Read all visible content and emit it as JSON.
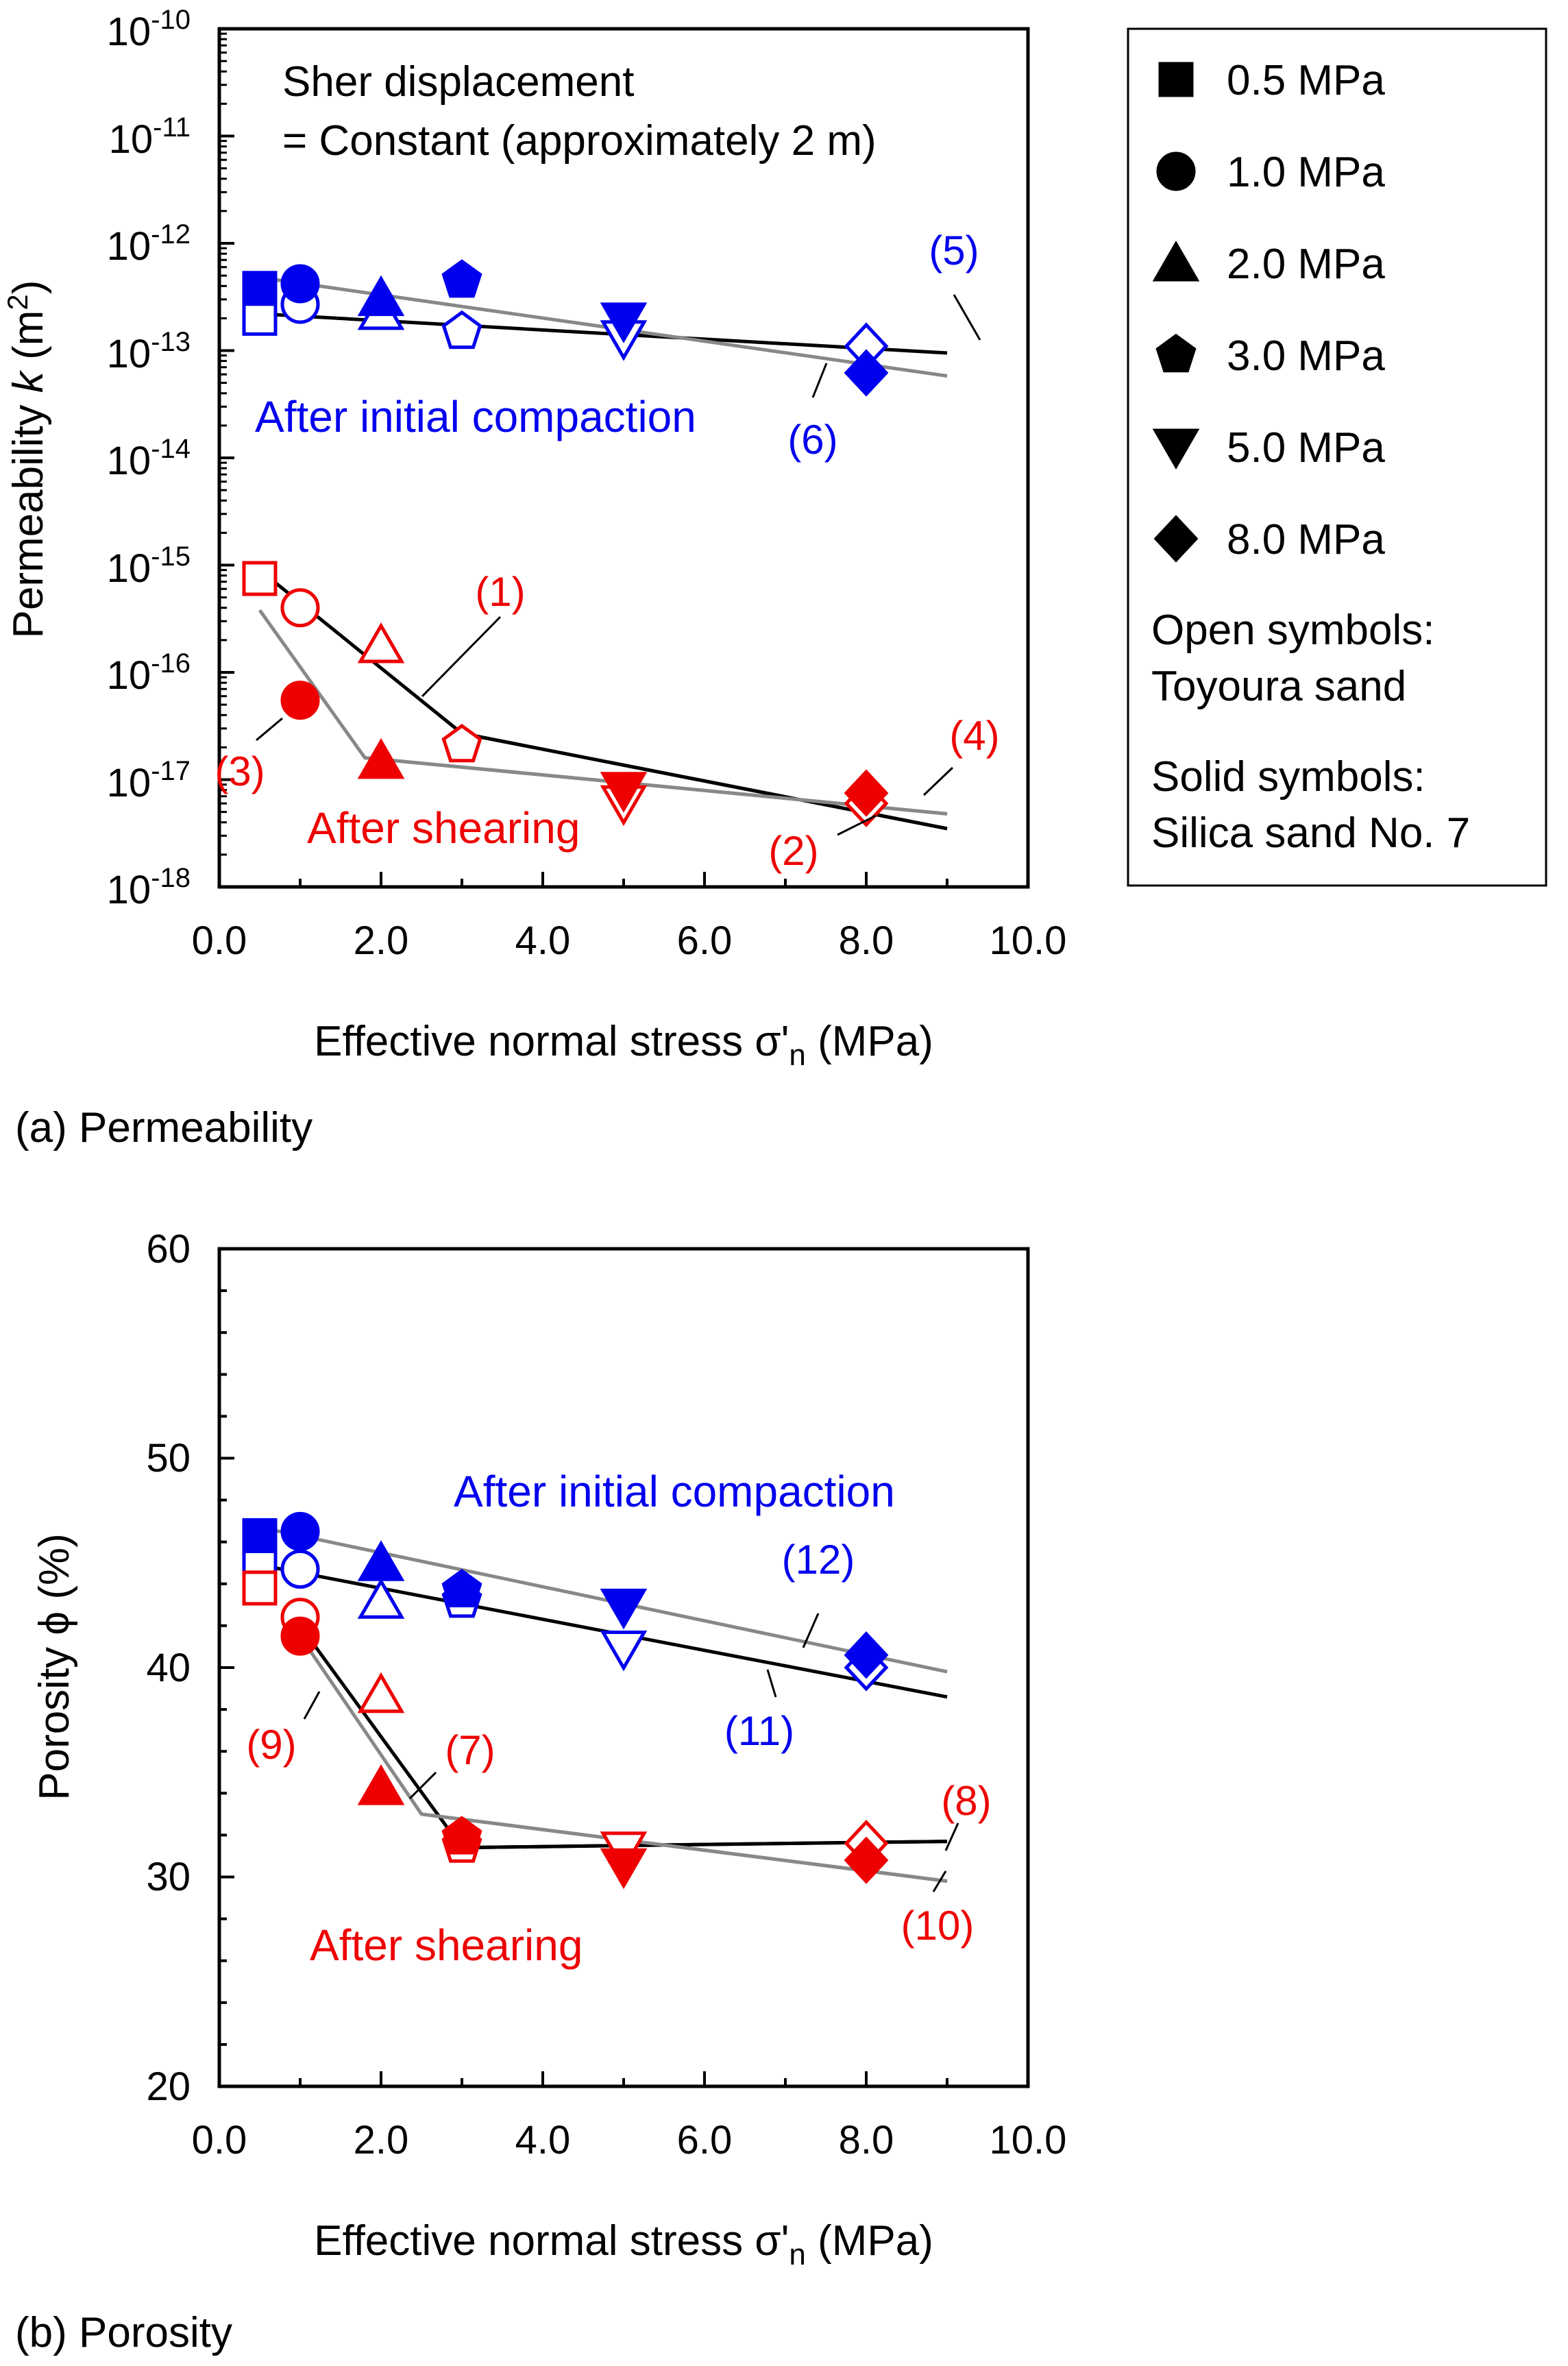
{
  "colors": {
    "blue": "#0000ee",
    "red": "#ee0000",
    "black": "#000000",
    "gray": "#888888"
  },
  "legend": {
    "entries": [
      {
        "label": "0.5 MPa",
        "marker": "square"
      },
      {
        "label": "1.0 MPa",
        "marker": "circle"
      },
      {
        "label": "2.0 MPa",
        "marker": "triangle-up"
      },
      {
        "label": "3.0 MPa",
        "marker": "pentagon"
      },
      {
        "label": "5.0 MPa",
        "marker": "triangle-down"
      },
      {
        "label": "8.0 MPa",
        "marker": "diamond"
      }
    ],
    "open_title": "Open symbols:",
    "open_desc": "Toyoura sand",
    "solid_title": "Solid symbols:",
    "solid_desc": "Silica sand No. 7"
  },
  "chart_data": [
    {
      "type": "scatter",
      "panel_caption": "(a) Permeability",
      "title": "",
      "note_line1": "Sher displacement",
      "note_line2": "= Constant (approximately 2 m)",
      "xlabel_main": "Effective normal stress σ'",
      "xlabel_sub": "n",
      "xlabel_tail": " (MPa)",
      "ylabel_main": "Permeability ",
      "ylabel_var": "k",
      "ylabel_unit": "  (m",
      "ylabel_sup": "2",
      "ylabel_close": ")",
      "xlim": [
        0,
        10
      ],
      "ylim_log10": [
        -18,
        -10
      ],
      "yscale": "log",
      "x_ticks": [
        "0.0",
        "2.0",
        "4.0",
        "6.0",
        "8.0",
        "10.0"
      ],
      "y_ticks": [
        {
          "base": "10",
          "exp": "-10"
        },
        {
          "base": "10",
          "exp": "-11"
        },
        {
          "base": "10",
          "exp": "-12"
        },
        {
          "base": "10",
          "exp": "-13"
        },
        {
          "base": "10",
          "exp": "-14"
        },
        {
          "base": "10",
          "exp": "-15"
        },
        {
          "base": "10",
          "exp": "-16"
        },
        {
          "base": "10",
          "exp": "-17"
        },
        {
          "base": "10",
          "exp": "-18"
        }
      ],
      "annotations": [
        {
          "text": "After initial compaction",
          "color": "blue"
        },
        {
          "text": "After shearing",
          "color": "red"
        }
      ],
      "series": [
        {
          "name": "Toyoura sand after initial compaction",
          "fill": "open",
          "color": "blue",
          "points": [
            {
              "x": 0.5,
              "y": 2e-13,
              "marker": "square"
            },
            {
              "x": 1.0,
              "y": 2.7e-13,
              "marker": "circle"
            },
            {
              "x": 2.0,
              "y": 2.3e-13,
              "marker": "triangle-up"
            },
            {
              "x": 3.0,
              "y": 1.5e-13,
              "marker": "pentagon"
            },
            {
              "x": 5.0,
              "y": 1.3e-13,
              "marker": "triangle-down"
            },
            {
              "x": 8.0,
              "y": 1.1e-13,
              "marker": "diamond"
            }
          ]
        },
        {
          "name": "Silica sand No. 7 after initial compaction",
          "fill": "solid",
          "color": "blue",
          "points": [
            {
              "x": 0.5,
              "y": 3.8e-13,
              "marker": "square"
            },
            {
              "x": 1.0,
              "y": 4.2e-13,
              "marker": "circle"
            },
            {
              "x": 2.0,
              "y": 3.1e-13,
              "marker": "triangle-up"
            },
            {
              "x": 3.0,
              "y": 4.5e-13,
              "marker": "pentagon"
            },
            {
              "x": 5.0,
              "y": 1.9e-13,
              "marker": "triangle-down"
            },
            {
              "x": 8.0,
              "y": 6.2e-14,
              "marker": "diamond"
            }
          ]
        },
        {
          "name": "Toyoura sand after shearing",
          "fill": "open",
          "color": "red",
          "points": [
            {
              "x": 0.5,
              "y": 7.5e-16,
              "marker": "square"
            },
            {
              "x": 1.0,
              "y": 4e-16,
              "marker": "circle"
            },
            {
              "x": 2.0,
              "y": 1.8e-16,
              "marker": "triangle-up"
            },
            {
              "x": 3.0,
              "y": 2.1e-17,
              "marker": "pentagon"
            },
            {
              "x": 5.0,
              "y": 6e-18,
              "marker": "triangle-down"
            },
            {
              "x": 8.0,
              "y": 6e-18,
              "marker": "diamond"
            }
          ]
        },
        {
          "name": "Silica sand No. 7 after shearing",
          "fill": "solid",
          "color": "red",
          "points": [
            {
              "x": 1.0,
              "y": 5.5e-17,
              "marker": "circle"
            },
            {
              "x": 2.0,
              "y": 1.5e-17,
              "marker": "triangle-up"
            },
            {
              "x": 5.0,
              "y": 8e-18,
              "marker": "triangle-down"
            },
            {
              "x": 8.0,
              "y": 7.5e-18,
              "marker": "diamond"
            }
          ]
        }
      ],
      "fit_lines": [
        {
          "label": "(1)",
          "color": "black",
          "label_color": "red",
          "points": [
            [
              0.5,
              9e-16
            ],
            [
              3.0,
              2.7e-17
            ],
            [
              9.0,
              3.5e-18
            ]
          ]
        },
        {
          "label": "(2)",
          "color": "black",
          "label_color": "red",
          "points": [
            [
              3.0,
              2.7e-17
            ],
            [
              9.0,
              3.5e-18
            ]
          ]
        },
        {
          "label": "(3)",
          "color": "gray",
          "label_color": "red",
          "points": [
            [
              0.5,
              3.8e-16
            ],
            [
              1.8,
              1.6e-17
            ],
            [
              9.0,
              4.8e-18
            ]
          ]
        },
        {
          "label": "(4)",
          "color": "gray",
          "label_color": "red",
          "points": [
            [
              1.8,
              1.6e-17
            ],
            [
              9.0,
              4.8e-18
            ]
          ]
        },
        {
          "label": "(5)",
          "color": "black",
          "label_color": "blue",
          "points": [
            [
              0.5,
              2.2e-13
            ],
            [
              9.0,
              9.5e-14
            ]
          ]
        },
        {
          "label": "(6)",
          "color": "gray",
          "label_color": "blue",
          "points": [
            [
              0.5,
              4.8e-13
            ],
            [
              9.0,
              5.8e-14
            ]
          ]
        }
      ]
    },
    {
      "type": "scatter",
      "panel_caption": "(b) Porosity",
      "title": "",
      "xlabel_main": "Effective normal stress σ'",
      "xlabel_sub": "n",
      "xlabel_tail": " (MPa)",
      "ylabel": "Porosity ϕ (%)",
      "xlim": [
        0,
        10
      ],
      "ylim": [
        20,
        60
      ],
      "yscale": "linear",
      "x_ticks": [
        "0.0",
        "2.0",
        "4.0",
        "6.0",
        "8.0",
        "10.0"
      ],
      "y_ticks": [
        "20",
        "30",
        "40",
        "50",
        "60"
      ],
      "annotations": [
        {
          "text": "After initial compaction",
          "color": "blue"
        },
        {
          "text": "After shearing",
          "color": "red"
        }
      ],
      "series": [
        {
          "name": "Toyoura sand after initial compaction",
          "fill": "open",
          "color": "blue",
          "points": [
            {
              "x": 0.5,
              "y": 45.2,
              "marker": "square"
            },
            {
              "x": 1.0,
              "y": 44.7,
              "marker": "circle"
            },
            {
              "x": 2.0,
              "y": 43.2,
              "marker": "triangle-up"
            },
            {
              "x": 3.0,
              "y": 43.2,
              "marker": "pentagon"
            },
            {
              "x": 5.0,
              "y": 40.9,
              "marker": "triangle-down"
            },
            {
              "x": 8.0,
              "y": 40.0,
              "marker": "diamond"
            }
          ]
        },
        {
          "name": "Silica sand No. 7 after initial compaction",
          "fill": "solid",
          "color": "blue",
          "points": [
            {
              "x": 0.5,
              "y": 46.3,
              "marker": "square"
            },
            {
              "x": 1.0,
              "y": 46.5,
              "marker": "circle"
            },
            {
              "x": 2.0,
              "y": 45.0,
              "marker": "triangle-up"
            },
            {
              "x": 3.0,
              "y": 43.7,
              "marker": "pentagon"
            },
            {
              "x": 5.0,
              "y": 42.9,
              "marker": "triangle-down"
            },
            {
              "x": 8.0,
              "y": 40.6,
              "marker": "diamond"
            }
          ]
        },
        {
          "name": "Toyoura sand after shearing",
          "fill": "open",
          "color": "red",
          "points": [
            {
              "x": 0.5,
              "y": 43.8,
              "marker": "square"
            },
            {
              "x": 1.0,
              "y": 42.4,
              "marker": "circle"
            },
            {
              "x": 2.0,
              "y": 38.7,
              "marker": "triangle-up"
            },
            {
              "x": 3.0,
              "y": 31.5,
              "marker": "pentagon"
            },
            {
              "x": 5.0,
              "y": 31.3,
              "marker": "triangle-down"
            },
            {
              "x": 8.0,
              "y": 31.6,
              "marker": "diamond"
            }
          ]
        },
        {
          "name": "Silica sand No. 7 after shearing",
          "fill": "solid",
          "color": "red",
          "points": [
            {
              "x": 1.0,
              "y": 41.5,
              "marker": "circle"
            },
            {
              "x": 2.0,
              "y": 34.3,
              "marker": "triangle-up"
            },
            {
              "x": 3.0,
              "y": 31.9,
              "marker": "pentagon"
            },
            {
              "x": 5.0,
              "y": 30.5,
              "marker": "triangle-down"
            },
            {
              "x": 8.0,
              "y": 30.8,
              "marker": "diamond"
            }
          ]
        }
      ],
      "fit_lines": [
        {
          "label": "(7)",
          "color": "black",
          "label_color": "red",
          "points": [
            [
              1.0,
              42.0
            ],
            [
              3.0,
              31.4
            ],
            [
              9.0,
              31.7
            ]
          ]
        },
        {
          "label": "(8)",
          "color": "black",
          "label_color": "red",
          "points": [
            [
              3.0,
              31.4
            ],
            [
              9.0,
              31.7
            ]
          ]
        },
        {
          "label": "(9)",
          "color": "gray",
          "label_color": "red",
          "points": [
            [
              1.0,
              41.5
            ],
            [
              2.5,
              33.0
            ],
            [
              9.0,
              29.8
            ]
          ]
        },
        {
          "label": "(10)",
          "color": "gray",
          "label_color": "red",
          "points": [
            [
              2.5,
              33.0
            ],
            [
              9.0,
              29.8
            ]
          ]
        },
        {
          "label": "(11)",
          "color": "black",
          "label_color": "blue",
          "points": [
            [
              0.5,
              44.9
            ],
            [
              9.0,
              38.6
            ]
          ]
        },
        {
          "label": "(12)",
          "color": "gray",
          "label_color": "blue",
          "points": [
            [
              0.5,
              46.7
            ],
            [
              9.0,
              39.8
            ]
          ]
        }
      ]
    }
  ]
}
